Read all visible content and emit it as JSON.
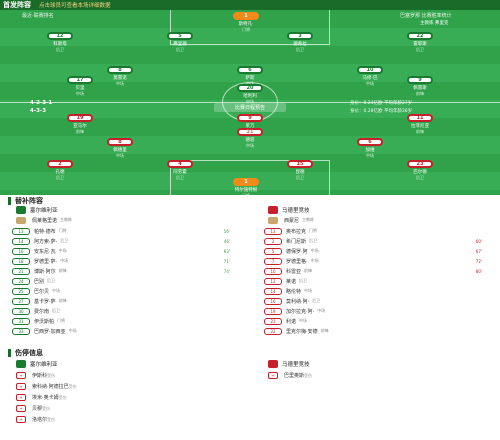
{
  "header": {
    "title": "首发阵容",
    "subtitle": "点击球员可查看本场详细数据"
  },
  "pitch": {
    "home_tag": "最近·联赛排名",
    "away_tag": "巴塞罗那 比赛胜率统计",
    "home_formation": "4-2-3-1",
    "away_formation": "4-3-3",
    "home_coach": "主教练 ·",
    "away_coach": "主教练 弗里克",
    "centre_chip": "比赛日程预告",
    "stat_left_1": "身价：0.24亿欧 平均年龄27岁",
    "stat_left_2": "身价：0.28亿欧 平均年龄28岁",
    "home_players": [
      {
        "shirt": "1",
        "name": "斯特凡·",
        "sub": "门将",
        "gk": true
      },
      {
        "shirt": "12",
        "name": "科斯塔",
        "sub": "后卫"
      },
      {
        "shirt": "5",
        "name": "弗里德",
        "sub": "后卫"
      },
      {
        "shirt": "3",
        "name": "德希拉",
        "sub": "后卫"
      },
      {
        "shirt": "22",
        "name": "雷耶斯",
        "sub": "后卫"
      },
      {
        "shirt": "8",
        "name": "莫雷诺",
        "sub": "中场"
      },
      {
        "shirt": "6",
        "name": "萨斯",
        "sub": "中场"
      },
      {
        "shirt": "10",
        "name": "马修·巴",
        "sub": "中场"
      },
      {
        "shirt": "17",
        "name": "贝里",
        "sub": "中场"
      },
      {
        "shirt": "20",
        "name": "哈利利",
        "sub": "中场"
      },
      {
        "shirt": "9",
        "name": "佩雷斯",
        "sub": "前锋"
      }
    ],
    "away_players": [
      {
        "shirt": "1",
        "name": "特尔施特根",
        "sub": "门将",
        "gk": true
      },
      {
        "shirt": "2",
        "name": "孔德",
        "sub": "后卫"
      },
      {
        "shirt": "4",
        "name": "阿劳霍",
        "sub": "后卫"
      },
      {
        "shirt": "15",
        "name": "昆德",
        "sub": "后卫"
      },
      {
        "shirt": "23",
        "name": "巴尔德",
        "sub": "后卫"
      },
      {
        "shirt": "8",
        "name": "佩德里",
        "sub": "中场"
      },
      {
        "shirt": "21",
        "name": "德容",
        "sub": "中场"
      },
      {
        "shirt": "6",
        "name": "加维",
        "sub": "中场"
      },
      {
        "shirt": "19",
        "name": "亚马尔",
        "sub": "前锋"
      },
      {
        "shirt": "9",
        "name": "莱万",
        "sub": "前锋"
      },
      {
        "shirt": "11",
        "name": "拉菲尼亚",
        "sub": "前锋"
      }
    ]
  },
  "subs": {
    "title": "替补阵容",
    "home_team": "塞尔维利亚",
    "away_team": "马德里竞技",
    "home_coach": "佩莱格里诺",
    "home_coach_role": "主教练",
    "away_coach": "西蒙尼",
    "away_coach_role": "主教练",
    "home_list": [
      {
        "num": "13",
        "name": "帕特·德布",
        "meta": "门将",
        "min": "56'"
      },
      {
        "num": "14",
        "name": "阿方索·萨·",
        "meta": "后卫",
        "min": "46'"
      },
      {
        "num": "16",
        "name": "安东尼·瓦",
        "meta": "中场",
        "min": "63'"
      },
      {
        "num": "18",
        "name": "罗德里·萨·",
        "meta": "中场",
        "min": "71'"
      },
      {
        "num": "21",
        "name": "博斯·阿尔",
        "meta": "前锋",
        "min": "74'"
      },
      {
        "num": "24",
        "name": "巴别",
        "meta": "后卫",
        "min": ""
      },
      {
        "num": "25",
        "name": "巴尔贝",
        "meta": "中场",
        "min": ""
      },
      {
        "num": "27",
        "name": "基卡罗·萨",
        "meta": "前锋",
        "min": ""
      },
      {
        "num": "30",
        "name": "费尔南",
        "meta": "后卫",
        "min": ""
      },
      {
        "num": "31",
        "name": "伊沃斯帕",
        "meta": "门将",
        "min": ""
      },
      {
        "num": "33",
        "name": "巴西罗·加西亚",
        "meta": "中场",
        "min": ""
      }
    ],
    "away_list": [
      {
        "num": "13",
        "name": "奥布拉克",
        "meta": "门将",
        "min": ""
      },
      {
        "num": "2",
        "name": "希门尼斯",
        "meta": "后卫",
        "min": "60'"
      },
      {
        "num": "5",
        "name": "德保罗·阿",
        "meta": "中场",
        "min": "67'"
      },
      {
        "num": "7",
        "name": "罗德里格·",
        "meta": "中场",
        "min": "72'"
      },
      {
        "num": "10",
        "name": "科雷亚",
        "meta": "前锋",
        "min": "80'"
      },
      {
        "num": "12",
        "name": "莱诺",
        "meta": "后卫",
        "min": ""
      },
      {
        "num": "14",
        "name": "略伦特",
        "meta": "中场",
        "min": ""
      },
      {
        "num": "16",
        "name": "莫利纳·阿·",
        "meta": "后卫",
        "min": ""
      },
      {
        "num": "19",
        "name": "加尔拉克·阿·",
        "meta": "中场",
        "min": ""
      },
      {
        "num": "21",
        "name": "利诺",
        "meta": "中场",
        "min": ""
      },
      {
        "num": "22",
        "name": "里克尔梅·安德",
        "meta": "前锋",
        "min": ""
      }
    ]
  },
  "injuries": {
    "title": "伤停信息",
    "home_team": "塞尔维利亚",
    "away_team": "马德里竞技",
    "home_list": [
      {
        "name": "伊斯科",
        "reason": "受伤"
      },
      {
        "name": "索科纳·阿德拉巴",
        "reason": "受伤"
      },
      {
        "name": "埃米·奥卡姆",
        "reason": "受伤"
      },
      {
        "name": "贝穆",
        "reason": "受伤"
      },
      {
        "name": "洛塔尔",
        "reason": "受伤"
      }
    ],
    "away_list": [
      {
        "name": "巴里奥斯",
        "reason": "受伤"
      }
    ]
  },
  "colors": {
    "home": "#1a7a30",
    "away": "#c8202a",
    "pitch": "#2fa24a",
    "keeper": "#f08a1a"
  }
}
